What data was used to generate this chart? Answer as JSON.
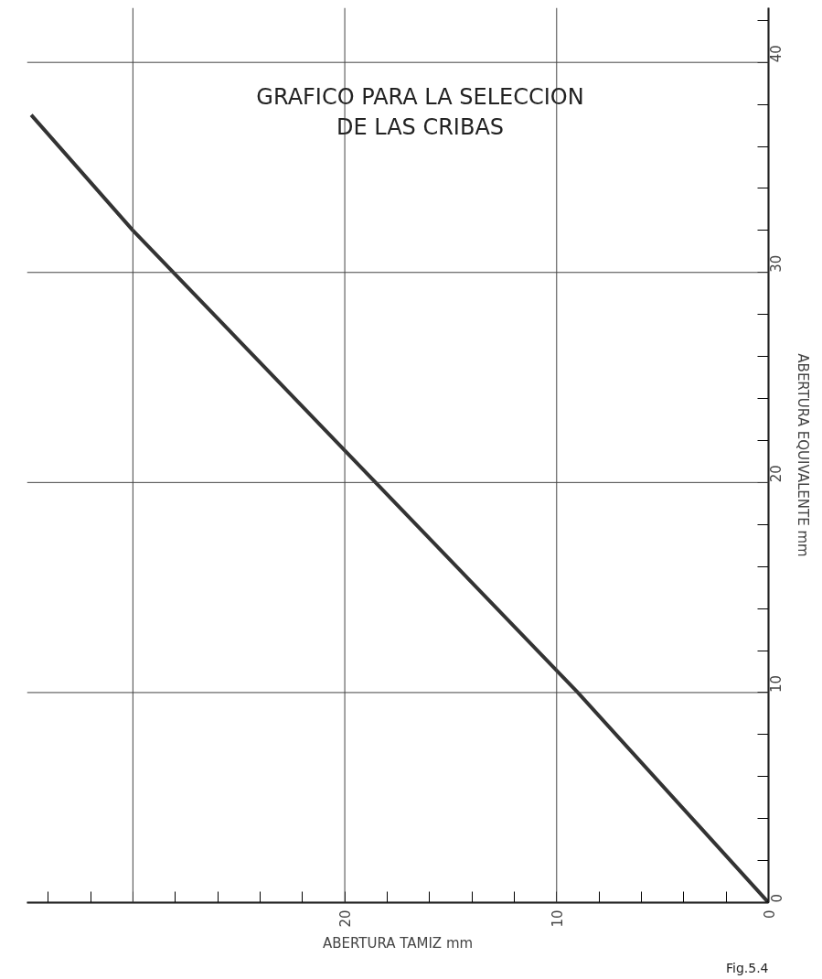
{
  "chart_data": {
    "type": "line",
    "title": "GRAFICO PARA LA SELECCION\nDE LAS CRIBAS",
    "xlabel": "ABERTURA TAMIZ mm",
    "ylabel": "ABERTURA EQUIVALENTE mm",
    "annotations": [
      "Fig.5.4"
    ],
    "x": [
      0,
      9,
      30,
      34.8
    ],
    "series": [
      {
        "color": "#333333",
        "values": [
          0,
          10,
          32,
          37.5
        ]
      }
    ],
    "xlim": [
      35,
      0
    ],
    "ylim": [
      0,
      42.6
    ],
    "xticks": [
      0,
      {
        "value": 2,
        "label": null
      },
      {
        "value": 4,
        "label": null
      },
      {
        "value": 6,
        "label": null
      },
      {
        "value": 8,
        "label": null
      },
      10,
      {
        "value": 12,
        "label": null
      },
      {
        "value": 14,
        "label": null
      },
      {
        "value": 16,
        "label": null
      },
      {
        "value": 18,
        "label": null
      },
      20,
      {
        "value": 22,
        "label": null
      },
      {
        "value": 24,
        "label": null
      },
      {
        "value": 26,
        "label": null
      },
      {
        "value": 28,
        "label": null
      },
      {
        "value": 30,
        "label": null
      },
      {
        "value": 32,
        "label": null
      },
      {
        "value": 34,
        "label": null
      }
    ],
    "yticks": [
      0,
      {
        "value": 2,
        "label": null
      },
      {
        "value": 4,
        "label": null
      },
      {
        "value": 6,
        "label": null
      },
      {
        "value": 8,
        "label": null
      },
      10,
      {
        "value": 12,
        "label": null
      },
      {
        "value": 14,
        "label": null
      },
      {
        "value": 16,
        "label": null
      },
      {
        "value": 18,
        "label": null
      },
      20,
      {
        "value": 22,
        "label": null
      },
      {
        "value": 24,
        "label": null
      },
      {
        "value": 26,
        "label": null
      },
      {
        "value": 28,
        "label": null
      },
      30,
      {
        "value": 32,
        "label": null
      },
      {
        "value": 34,
        "label": null
      },
      {
        "value": 36,
        "label": null
      },
      {
        "value": 38,
        "label": null
      },
      40,
      {
        "value": 42,
        "label": null
      }
    ],
    "grid": true,
    "line_style": "solid",
    "marker": "none"
  }
}
